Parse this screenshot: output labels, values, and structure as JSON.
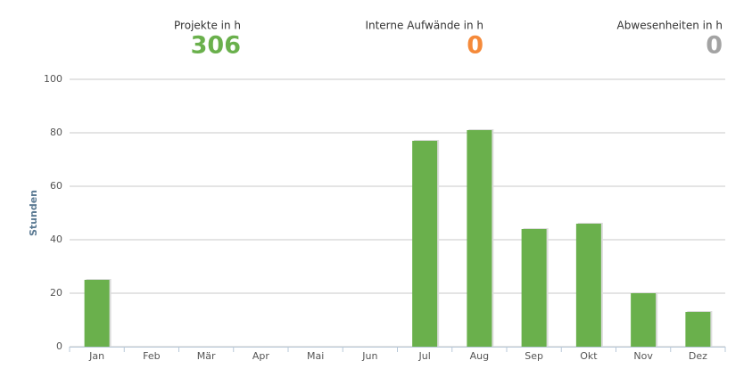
{
  "summary": [
    {
      "label": "Projekte in h",
      "value": "306",
      "color": "#6ab04c"
    },
    {
      "label": "Interne Aufwände in h",
      "value": "0",
      "color": "#f58a3a"
    },
    {
      "label": "Abwesenheiten in h",
      "value": "0",
      "color": "#a3a3a3"
    }
  ],
  "chart_data": {
    "type": "bar",
    "y_label": "Stunden",
    "categories": [
      "Jan",
      "Feb",
      "Mär",
      "Apr",
      "Mai",
      "Jun",
      "Jul",
      "Aug",
      "Sep",
      "Okt",
      "Nov",
      "Dez"
    ],
    "values": [
      25,
      0,
      0,
      0,
      0,
      0,
      77,
      81,
      44,
      46,
      20,
      13
    ],
    "color": "#6ab04c",
    "ylim": [
      0,
      100
    ],
    "yticks": [
      0,
      20,
      40,
      60,
      80,
      100
    ],
    "grid": true
  }
}
